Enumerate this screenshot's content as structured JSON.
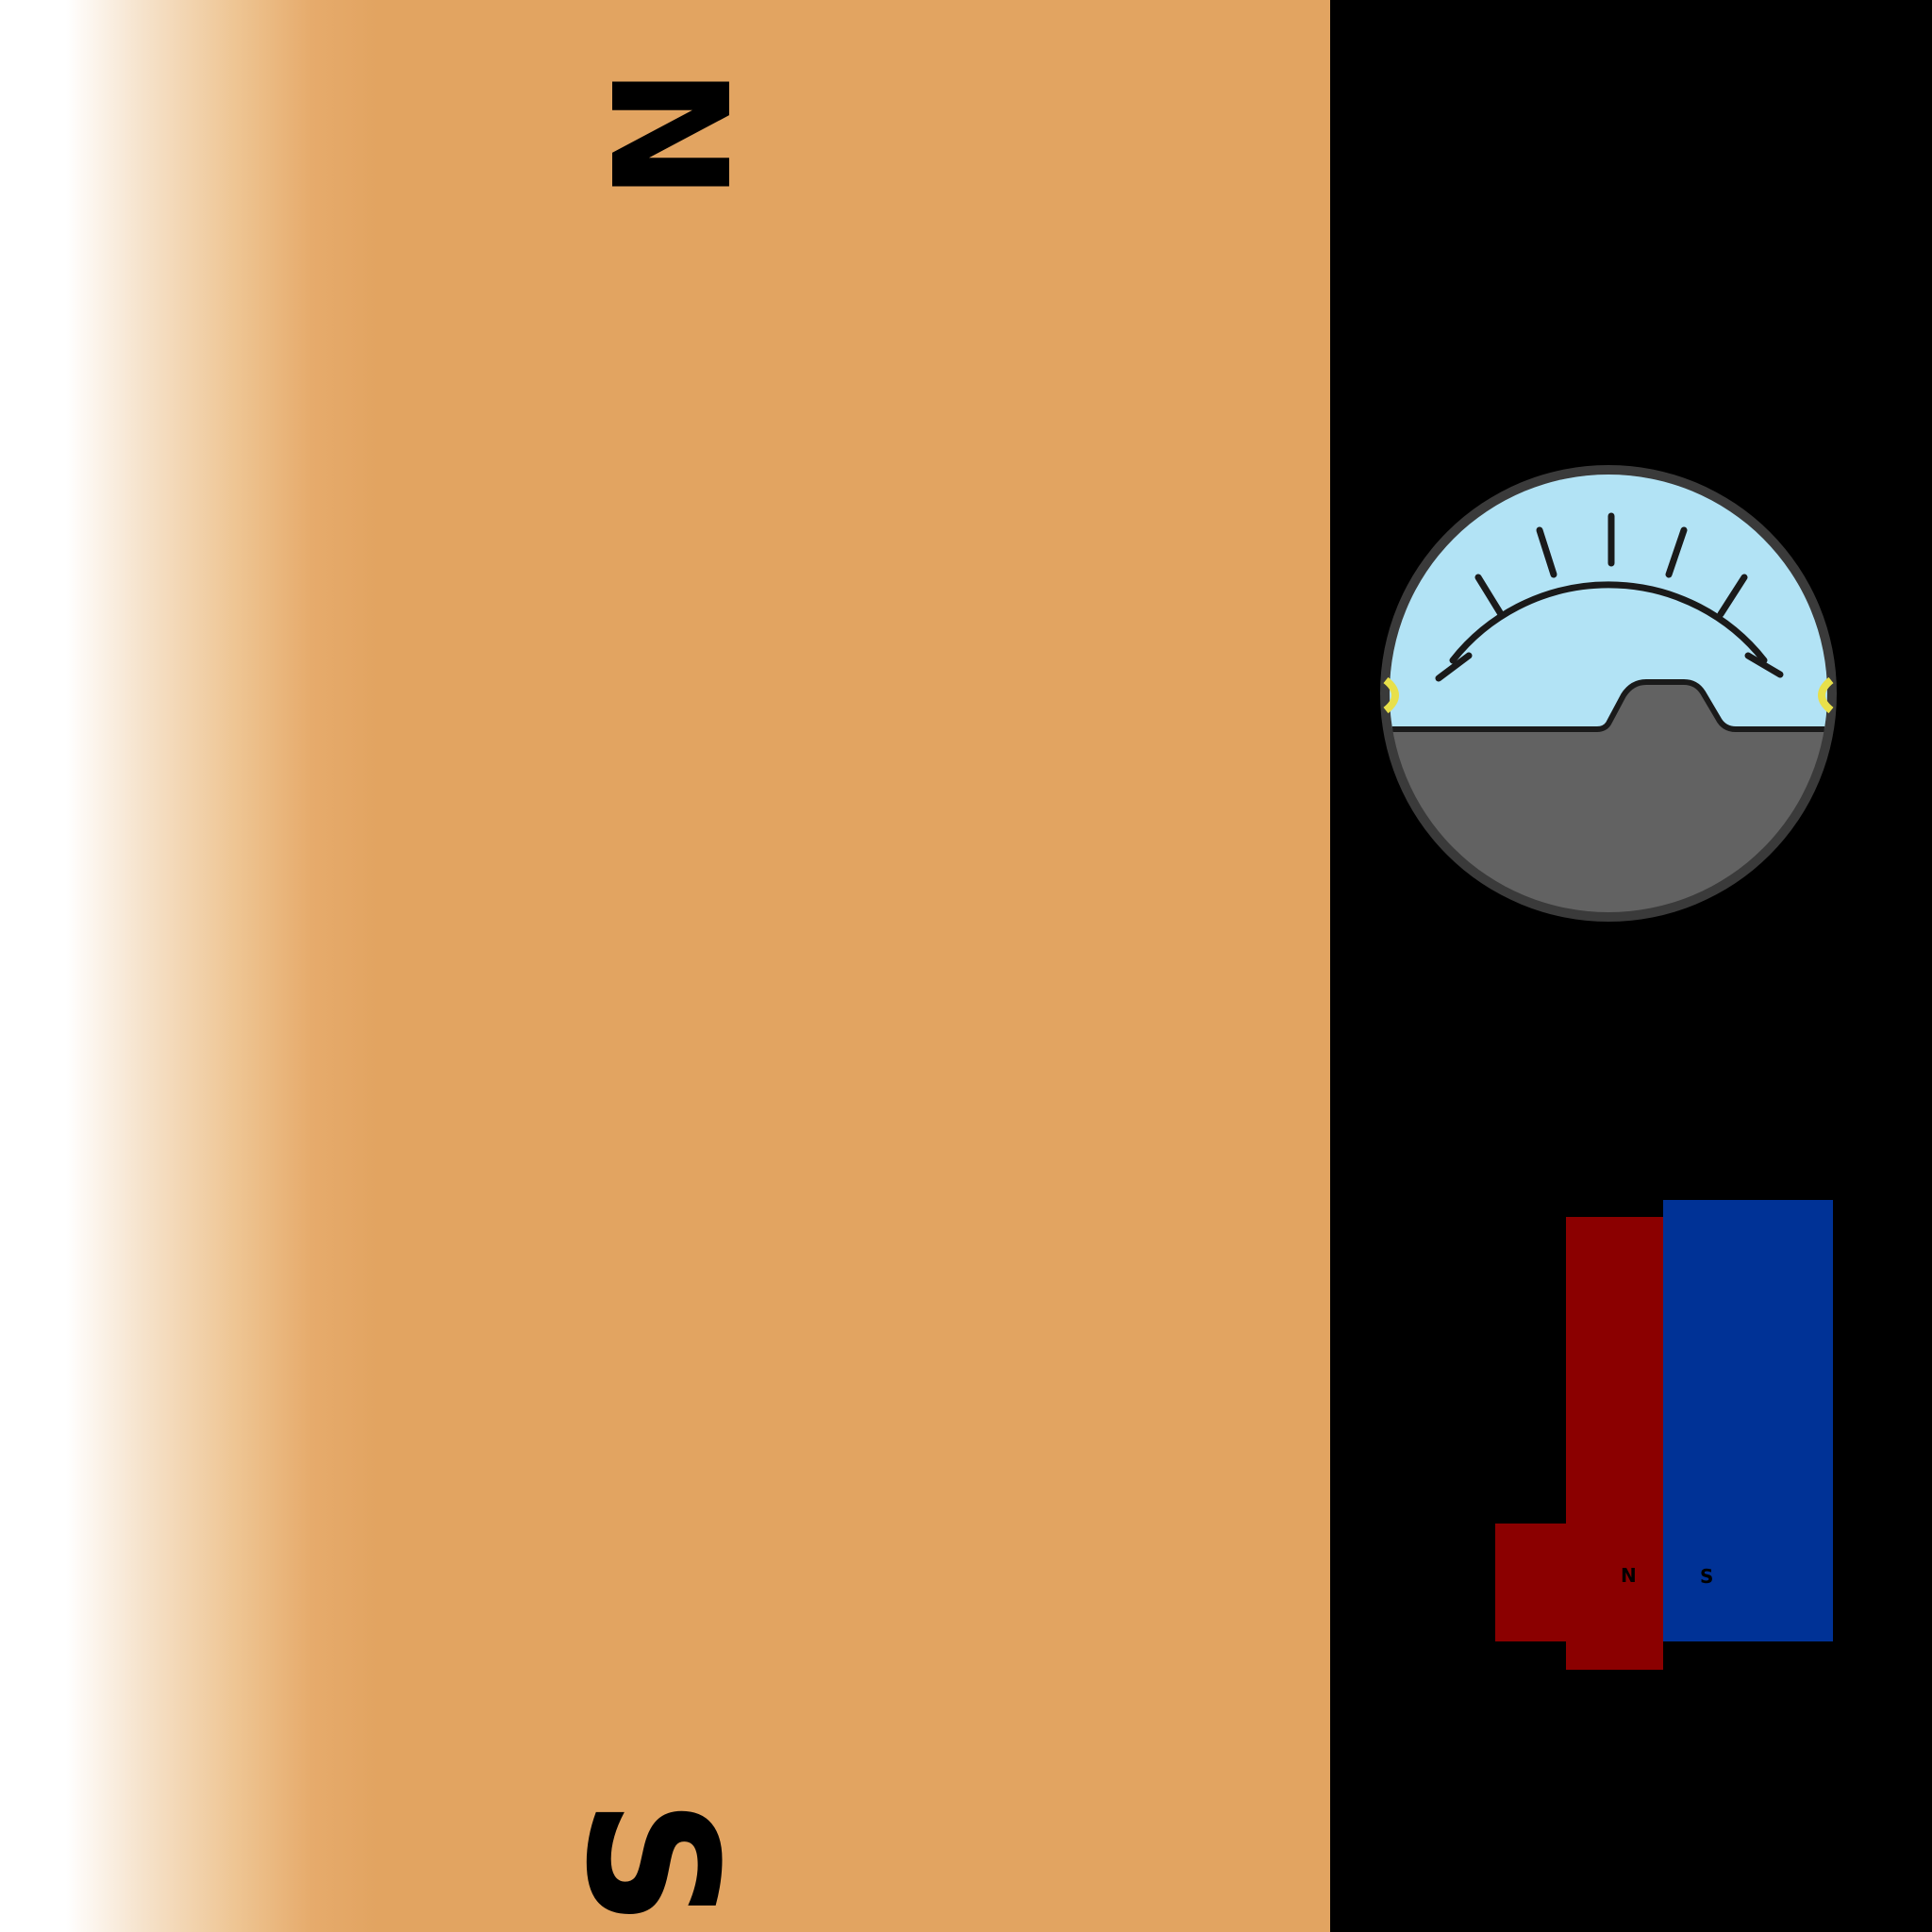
{
  "big_magnet": {
    "north_label": "N",
    "south_label": "S",
    "color": "#e2a461"
  },
  "galvanometer": {
    "dial_color": "#b2e3f5",
    "body_color": "#626262",
    "terminal_color": "#e8e04a",
    "tick_count": 7
  },
  "small_magnet": {
    "north_label": "N",
    "south_label": "S",
    "north_color": "#8b0000",
    "south_color": "#003296"
  },
  "background_color": "#000000"
}
